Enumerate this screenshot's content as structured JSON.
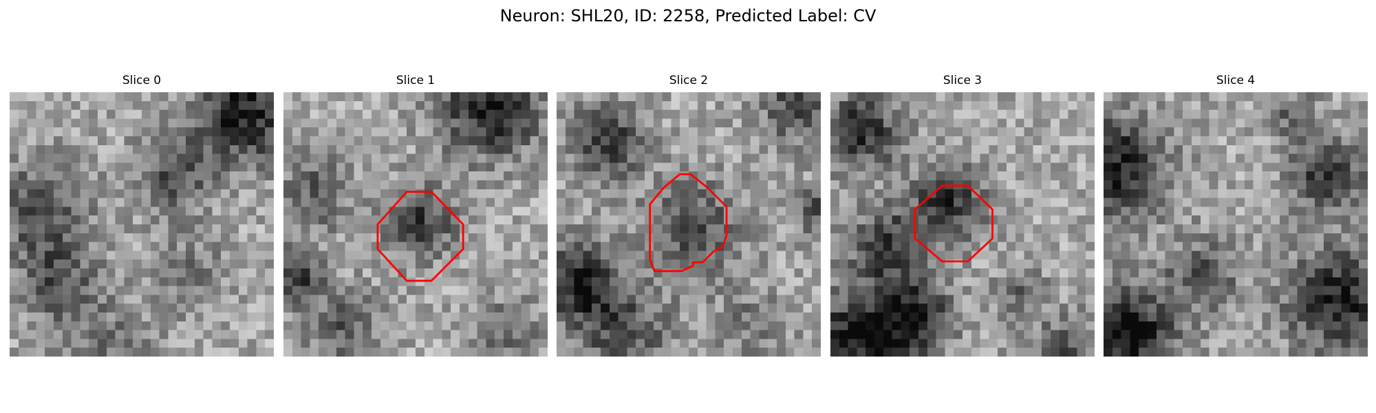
{
  "figure": {
    "title": "Neuron: SHL20, ID: 2258, Predicted Label: CV",
    "outline_color": "#ff0000",
    "colormap": "grayscale"
  },
  "panels": [
    {
      "title": "Slice 0",
      "has_outline": false
    },
    {
      "title": "Slice 1",
      "has_outline": true
    },
    {
      "title": "Slice 2",
      "has_outline": true
    },
    {
      "title": "Slice 3",
      "has_outline": true
    },
    {
      "title": "Slice 4",
      "has_outline": false
    }
  ]
}
